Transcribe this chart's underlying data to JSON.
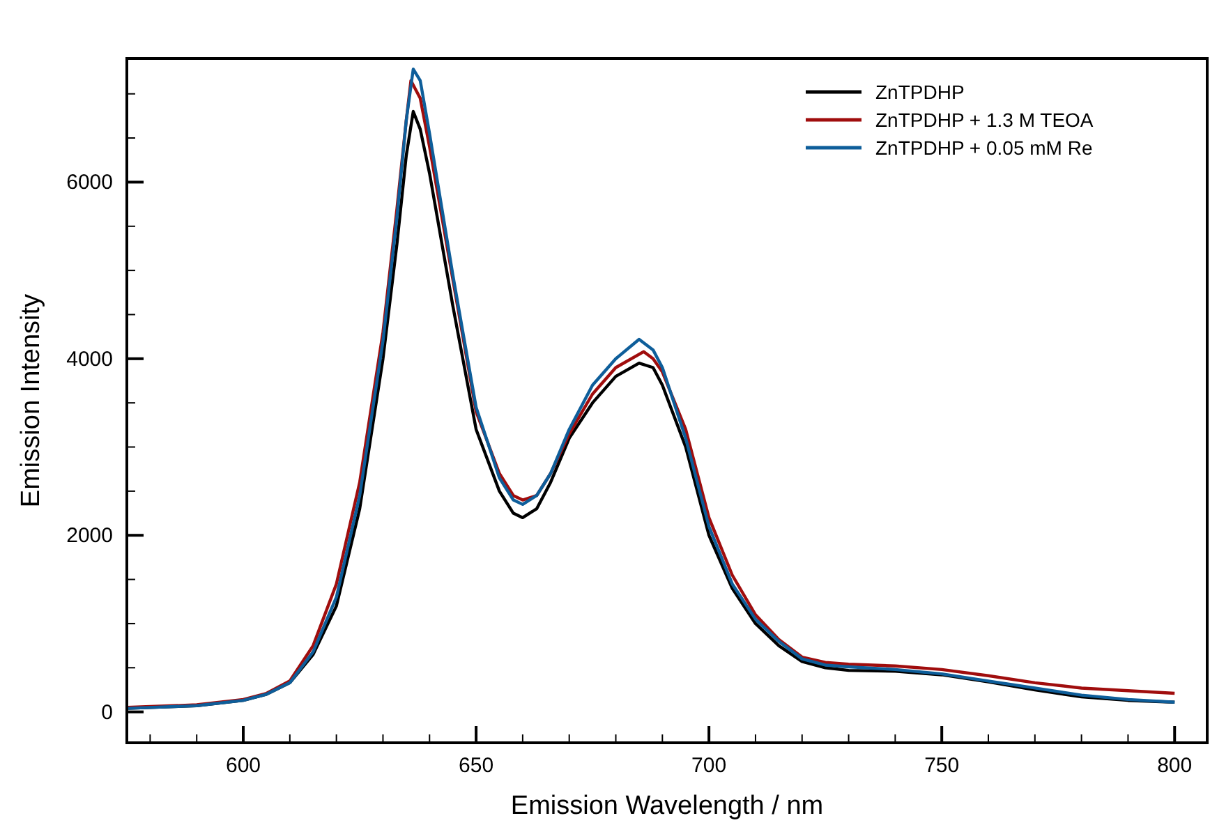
{
  "chart_data": {
    "type": "line",
    "xlabel": "Emission Wavelength / nm",
    "ylabel": "Emission Intensity",
    "xlim": [
      575,
      807
    ],
    "ylim": [
      -350,
      7400
    ],
    "xticks": [
      {
        "value": 580,
        "label": null
      },
      {
        "value": 590,
        "label": null
      },
      600,
      {
        "value": 610,
        "label": null
      },
      {
        "value": 620,
        "label": null
      },
      {
        "value": 630,
        "label": null
      },
      {
        "value": 640,
        "label": null
      },
      650,
      {
        "value": 660,
        "label": null
      },
      {
        "value": 670,
        "label": null
      },
      {
        "value": 680,
        "label": null
      },
      {
        "value": 690,
        "label": null
      },
      700,
      {
        "value": 710,
        "label": null
      },
      {
        "value": 720,
        "label": null
      },
      {
        "value": 730,
        "label": null
      },
      {
        "value": 740,
        "label": null
      },
      750,
      {
        "value": 760,
        "label": null
      },
      {
        "value": 770,
        "label": null
      },
      {
        "value": 780,
        "label": null
      },
      {
        "value": 790,
        "label": null
      },
      800
    ],
    "yticks": [
      0,
      {
        "value": 500,
        "label": null
      },
      {
        "value": 1000,
        "label": null
      },
      {
        "value": 1500,
        "label": null
      },
      2000,
      {
        "value": 2500,
        "label": null
      },
      {
        "value": 3000,
        "label": null
      },
      {
        "value": 3500,
        "label": null
      },
      4000,
      {
        "value": 4500,
        "label": null
      },
      {
        "value": 5000,
        "label": null
      },
      {
        "value": 5500,
        "label": null
      },
      6000,
      {
        "value": 6500,
        "label": null
      },
      {
        "value": 7000,
        "label": null
      }
    ],
    "grid": false,
    "legend": "top right",
    "marker": "none",
    "line_style": "solid",
    "series": [
      {
        "name": "ZnTPDHP",
        "color": "#000000",
        "x": [
          575,
          590,
          600,
          605,
          610,
          615,
          620,
          625,
          630,
          633,
          635,
          636.5,
          638,
          640,
          645,
          650,
          655,
          658,
          660,
          663,
          666,
          670,
          675,
          680,
          685,
          688,
          690,
          695,
          700,
          705,
          710,
          715,
          720,
          725,
          730,
          740,
          750,
          760,
          770,
          780,
          790,
          800
        ],
        "values": [
          40,
          70,
          130,
          200,
          330,
          650,
          1200,
          2300,
          4000,
          5300,
          6300,
          6800,
          6600,
          6100,
          4600,
          3200,
          2500,
          2250,
          2200,
          2300,
          2600,
          3100,
          3500,
          3800,
          3950,
          3900,
          3700,
          3000,
          2000,
          1400,
          1000,
          750,
          570,
          500,
          470,
          460,
          420,
          340,
          250,
          170,
          130,
          110
        ]
      },
      {
        "name": "ZnTPDHP + 1.3 M TEOA",
        "color": "#a00d0d",
        "x": [
          575,
          590,
          600,
          605,
          610,
          615,
          620,
          625,
          630,
          633,
          635,
          636,
          638,
          640,
          645,
          650,
          655,
          658,
          660,
          663,
          666,
          670,
          675,
          680,
          686,
          688,
          690,
          695,
          700,
          705,
          710,
          715,
          720,
          725,
          730,
          740,
          750,
          760,
          770,
          780,
          790,
          800
        ],
        "values": [
          50,
          80,
          140,
          210,
          350,
          750,
          1450,
          2600,
          4300,
          5700,
          6700,
          7150,
          6950,
          6400,
          4900,
          3400,
          2700,
          2450,
          2400,
          2450,
          2700,
          3150,
          3600,
          3900,
          4080,
          4000,
          3850,
          3200,
          2200,
          1550,
          1100,
          820,
          620,
          560,
          540,
          520,
          480,
          410,
          330,
          270,
          240,
          210
        ]
      },
      {
        "name": "ZnTPDHP + 0.05 mM Re",
        "color": "#0e5e9a",
        "x": [
          575,
          590,
          600,
          605,
          610,
          615,
          620,
          625,
          630,
          633,
          635,
          636.5,
          638,
          640,
          645,
          650,
          655,
          658,
          660,
          663,
          666,
          670,
          675,
          680,
          685,
          688,
          690,
          695,
          700,
          705,
          710,
          715,
          720,
          725,
          730,
          740,
          750,
          760,
          770,
          780,
          790,
          800
        ],
        "values": [
          40,
          70,
          130,
          200,
          330,
          680,
          1300,
          2450,
          4200,
          5600,
          6700,
          7280,
          7150,
          6550,
          4950,
          3450,
          2650,
          2400,
          2350,
          2450,
          2700,
          3200,
          3700,
          4000,
          4220,
          4100,
          3900,
          3100,
          2100,
          1450,
          1050,
          800,
          600,
          530,
          510,
          480,
          430,
          350,
          270,
          190,
          140,
          110
        ]
      }
    ]
  }
}
